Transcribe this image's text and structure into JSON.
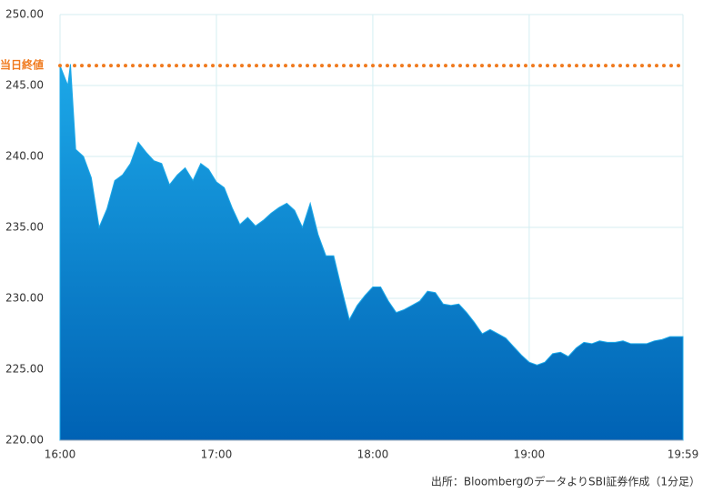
{
  "chart_data": {
    "type": "area",
    "x": [
      "16:00",
      "16:03",
      "16:04",
      "16:06",
      "16:09",
      "16:12",
      "16:15",
      "16:18",
      "16:21",
      "16:24",
      "16:27",
      "16:30",
      "16:33",
      "16:36",
      "16:39",
      "16:42",
      "16:45",
      "16:48",
      "16:51",
      "16:54",
      "16:57",
      "17:00",
      "17:03",
      "17:06",
      "17:09",
      "17:12",
      "17:15",
      "17:18",
      "17:21",
      "17:24",
      "17:27",
      "17:30",
      "17:33",
      "17:36",
      "17:39",
      "17:42",
      "17:45",
      "17:48",
      "17:51",
      "17:54",
      "17:57",
      "18:00",
      "18:03",
      "18:06",
      "18:09",
      "18:12",
      "18:15",
      "18:18",
      "18:21",
      "18:24",
      "18:27",
      "18:30",
      "18:33",
      "18:36",
      "18:39",
      "18:42",
      "18:45",
      "18:48",
      "18:51",
      "18:54",
      "18:57",
      "19:00",
      "19:03",
      "19:06",
      "19:09",
      "19:12",
      "19:15",
      "19:18",
      "19:21",
      "19:24",
      "19:27",
      "19:30",
      "19:33",
      "19:36",
      "19:39",
      "19:42",
      "19:45",
      "19:48",
      "19:51",
      "19:54",
      "19:57",
      "19:59"
    ],
    "values": [
      246.4,
      245.0,
      246.5,
      240.5,
      240.0,
      238.5,
      235.0,
      236.3,
      238.3,
      238.7,
      239.5,
      241.0,
      240.3,
      239.7,
      239.5,
      238.0,
      238.7,
      239.2,
      238.3,
      239.5,
      239.1,
      238.2,
      237.8,
      236.4,
      235.2,
      235.7,
      235.1,
      235.5,
      236.0,
      236.4,
      236.7,
      236.2,
      235.0,
      236.7,
      234.5,
      233.0,
      233.0,
      230.7,
      228.5,
      229.5,
      230.2,
      230.8,
      230.8,
      229.8,
      229.0,
      229.2,
      229.5,
      229.8,
      230.5,
      230.4,
      229.6,
      229.5,
      229.6,
      229.0,
      228.3,
      227.5,
      227.8,
      227.5,
      227.2,
      226.6,
      226.0,
      225.5,
      225.3,
      225.5,
      226.1,
      226.2,
      225.9,
      226.5,
      226.9,
      226.8,
      227.0,
      226.9,
      226.9,
      227.0,
      226.8,
      226.8,
      226.8,
      227.0,
      227.1,
      227.3,
      227.3,
      227.3
    ],
    "xlim": [
      "16:00",
      "19:59"
    ],
    "xticks": [
      "16:00",
      "17:00",
      "18:00",
      "19:00",
      "19:59"
    ],
    "ylim": [
      220,
      250
    ],
    "yticks": [
      {
        "value": 220,
        "label": "220.00"
      },
      {
        "value": 225,
        "label": "225.00"
      },
      {
        "value": 230,
        "label": "230.00"
      },
      {
        "value": 235,
        "label": "235.00"
      },
      {
        "value": 240,
        "label": "240.00"
      },
      {
        "value": 245,
        "label": "245.00"
      },
      {
        "value": 250,
        "label": "250.00"
      }
    ],
    "grid": true,
    "color_top": "#1ca8e8",
    "color_bottom": "#0062b4",
    "reference": {
      "label": "当日終値",
      "value": 246.4,
      "color": "#f07a1e"
    },
    "source": "出所：BloombergのデータよりSBI証券作成（1分足）"
  }
}
